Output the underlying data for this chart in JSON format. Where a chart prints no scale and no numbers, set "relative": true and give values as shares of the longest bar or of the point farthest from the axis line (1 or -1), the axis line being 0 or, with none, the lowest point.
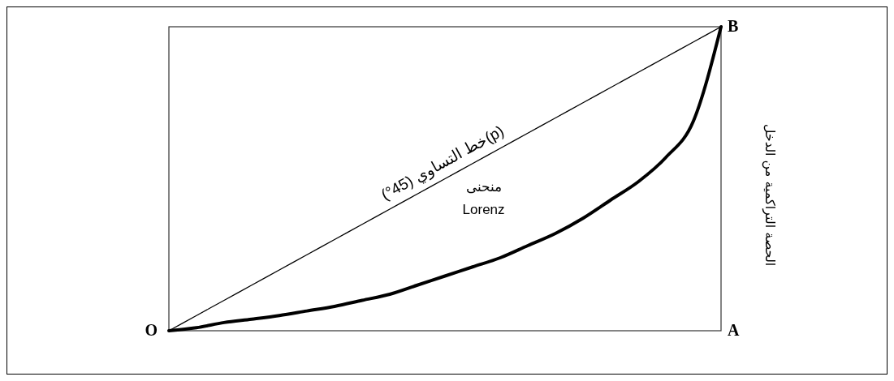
{
  "chart_data": {
    "type": "line",
    "relative": true,
    "ylabel": "الحصة التراكمية من الدخل",
    "categories": [
      null,
      null,
      null,
      null,
      null,
      null,
      null,
      null,
      null,
      null,
      null,
      null,
      null,
      null,
      null,
      null,
      null,
      null,
      null,
      null,
      null
    ],
    "series": [
      {
        "color": "#000000",
        "values": [
          0,
          0.05,
          0.1,
          0.15,
          0.2,
          0.25,
          0.3,
          0.35,
          0.4,
          0.45,
          0.5,
          0.55,
          0.6,
          0.65,
          0.7,
          0.75,
          0.8,
          0.85,
          0.9,
          0.95,
          1
        ]
      },
      {
        "color": "#000000",
        "values": [
          0,
          0.01,
          0.027,
          0.038,
          0.05,
          0.065,
          0.08,
          0.1,
          0.12,
          0.15,
          0.18,
          0.21,
          0.24,
          0.28,
          0.32,
          0.37,
          0.43,
          0.49,
          0.57,
          0.69,
          1
        ]
      }
    ],
    "annotations": [
      "O",
      "A",
      "B",
      "(p)خط التساوي (45°)",
      "منحنى Lorenz"
    ],
    "grid": false,
    "marker": "none",
    "line_style": "solid"
  }
}
